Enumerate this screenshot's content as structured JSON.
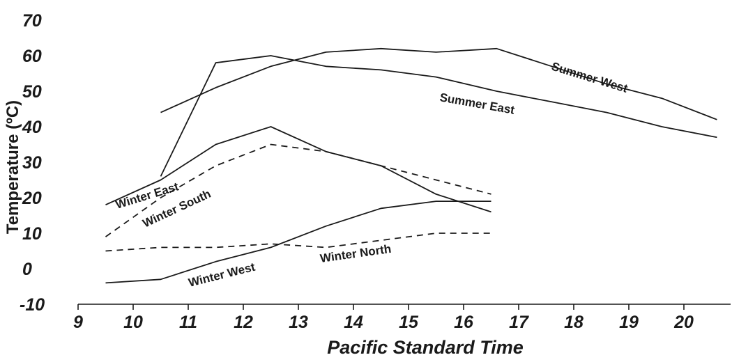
{
  "chart_data": {
    "type": "line",
    "title": "",
    "xlabel": "Pacific Standard Time",
    "ylabel": "Temperature (ºC)",
    "xlim": [
      9,
      21.5
    ],
    "ylim": [
      -10,
      70
    ],
    "x_ticks": [
      9,
      10,
      11,
      12,
      13,
      14,
      15,
      16,
      17,
      18,
      19,
      20
    ],
    "y_ticks": [
      -10,
      0,
      10,
      20,
      30,
      40,
      50,
      60,
      70
    ],
    "grid": false,
    "legend": "none",
    "series": [
      {
        "name": "Summer West",
        "dashed": false,
        "x": [
          10.5,
          11.5,
          12.5,
          13.5,
          14.5,
          15.5,
          16.6,
          17.6,
          18.6,
          19.6,
          20.6
        ],
        "y": [
          44,
          51,
          57,
          61,
          62,
          61,
          62,
          57,
          52,
          48,
          42
        ]
      },
      {
        "name": "Summer East",
        "dashed": false,
        "x": [
          10.5,
          11.5,
          12.5,
          13.5,
          14.5,
          15.5,
          16.6,
          17.6,
          18.6,
          19.6,
          20.6
        ],
        "y": [
          26,
          58,
          60,
          57,
          56,
          54,
          50,
          47,
          44,
          40,
          37
        ]
      },
      {
        "name": "Winter East",
        "dashed": false,
        "x": [
          9.5,
          10.5,
          11.5,
          12.5,
          13.5,
          14.5,
          15.5,
          16.5
        ],
        "y": [
          18,
          25,
          35,
          40,
          33,
          29,
          21,
          16
        ]
      },
      {
        "name": "Winter South",
        "dashed": true,
        "x": [
          9.5,
          10.5,
          11.5,
          12.5,
          13.5,
          14.5,
          15.5,
          16.5
        ],
        "y": [
          9,
          20,
          29,
          35,
          33,
          29,
          25,
          21
        ]
      },
      {
        "name": "Winter West",
        "dashed": false,
        "x": [
          9.5,
          10.5,
          11.5,
          12.5,
          13.5,
          14.5,
          15.5,
          16.5
        ],
        "y": [
          -4,
          -3,
          2,
          6,
          12,
          17,
          19,
          19
        ]
      },
      {
        "name": "Winter North",
        "dashed": true,
        "x": [
          9.5,
          10.5,
          11.5,
          12.5,
          13.5,
          14.5,
          15.5,
          16.5
        ],
        "y": [
          5,
          6,
          6,
          7,
          6,
          8,
          10,
          10
        ]
      }
    ]
  }
}
